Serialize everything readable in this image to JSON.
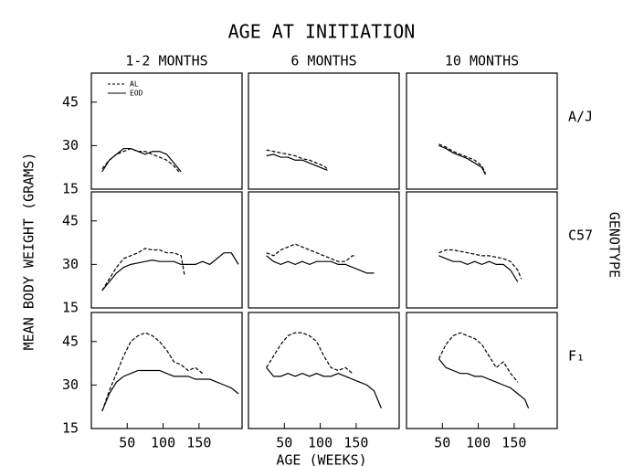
{
  "title": "AGE AT INITIATION",
  "y_label": "MEAN BODY WEIGHT (GRAMS)",
  "x_label": "AGE (WEEKS)",
  "right_label": "GENOTYPE",
  "chart_data": [
    {
      "type": "line",
      "column_title": "1-2 MONTHS",
      "xlim": [
        0,
        210
      ],
      "ylim": [
        15,
        55
      ],
      "yticks": [
        15,
        30,
        45
      ],
      "color": "#000000",
      "series": [
        {
          "name": "AL",
          "dash": true,
          "x": [
            15,
            25,
            35,
            45,
            55,
            65,
            75,
            85,
            95,
            105,
            115,
            122
          ],
          "values": [
            22,
            25,
            27,
            28,
            29,
            28,
            28,
            27,
            26,
            25,
            23,
            21
          ]
        },
        {
          "name": "EOD",
          "dash": false,
          "x": [
            15,
            25,
            35,
            45,
            55,
            65,
            75,
            85,
            95,
            105,
            115,
            125
          ],
          "values": [
            21,
            25,
            27,
            29,
            29,
            28,
            27,
            28,
            28,
            27,
            24,
            21
          ]
        }
      ]
    },
    {
      "type": "line",
      "column_title": "6 MONTHS",
      "xlim": [
        0,
        210
      ],
      "ylim": [
        15,
        55
      ],
      "color": "#000000",
      "series": [
        {
          "dash": true,
          "x": [
            25,
            35,
            45,
            55,
            65,
            75,
            85,
            95,
            105,
            110
          ],
          "values": [
            28.5,
            28,
            27.5,
            27,
            26.5,
            25.5,
            25,
            24,
            23,
            22
          ]
        },
        {
          "dash": false,
          "x": [
            25,
            35,
            45,
            55,
            65,
            75,
            85,
            95,
            105,
            110
          ],
          "values": [
            26.5,
            27,
            26,
            26,
            25,
            25,
            24,
            23,
            22,
            21.5
          ]
        }
      ]
    },
    {
      "type": "line",
      "column_title": "10 MONTHS",
      "row_label": "A/J",
      "xlim": [
        0,
        210
      ],
      "ylim": [
        15,
        55
      ],
      "color": "#000000",
      "series": [
        {
          "dash": true,
          "x": [
            45,
            55,
            65,
            75,
            85,
            95,
            105,
            110
          ],
          "values": [
            30.5,
            29.5,
            28,
            27,
            26,
            25,
            23,
            20.5
          ]
        },
        {
          "dash": false,
          "x": [
            45,
            55,
            65,
            75,
            85,
            95,
            105,
            110
          ],
          "values": [
            30,
            29,
            27.5,
            26.5,
            25.5,
            24,
            22.5,
            20
          ]
        }
      ]
    },
    {
      "type": "line",
      "xlim": [
        0,
        210
      ],
      "ylim": [
        15,
        55
      ],
      "yticks": [
        15,
        30,
        45
      ],
      "color": "#000000",
      "series": [
        {
          "dash": true,
          "x": [
            15,
            25,
            35,
            45,
            55,
            65,
            75,
            85,
            95,
            105,
            115,
            125,
            130
          ],
          "values": [
            21,
            25,
            29,
            32,
            33,
            34,
            35.5,
            35,
            35,
            34,
            34,
            33,
            26
          ]
        },
        {
          "dash": false,
          "x": [
            15,
            25,
            35,
            45,
            55,
            65,
            75,
            85,
            95,
            105,
            115,
            125,
            135,
            145,
            155,
            165,
            175,
            185,
            195,
            205
          ],
          "values": [
            21,
            24,
            27,
            29,
            30,
            30.5,
            31,
            31.5,
            31,
            31,
            31,
            30,
            30,
            30,
            31,
            30,
            32,
            34,
            34,
            30
          ]
        }
      ]
    },
    {
      "type": "line",
      "xlim": [
        0,
        210
      ],
      "ylim": [
        15,
        55
      ],
      "color": "#000000",
      "series": [
        {
          "dash": true,
          "x": [
            25,
            35,
            45,
            55,
            65,
            75,
            85,
            95,
            105,
            115,
            125,
            135,
            145,
            150
          ],
          "values": [
            34,
            33,
            35,
            36,
            37,
            36,
            35,
            34,
            33,
            32,
            31,
            31,
            33,
            33
          ]
        },
        {
          "dash": false,
          "x": [
            25,
            35,
            45,
            55,
            65,
            75,
            85,
            95,
            105,
            115,
            125,
            135,
            145,
            155,
            165,
            175
          ],
          "values": [
            33,
            31,
            30,
            31,
            30,
            31,
            30,
            31,
            31,
            31,
            30,
            30,
            29,
            28,
            27,
            27
          ]
        }
      ]
    },
    {
      "type": "line",
      "row_label": "C57",
      "xlim": [
        0,
        210
      ],
      "ylim": [
        15,
        55
      ],
      "color": "#000000",
      "series": [
        {
          "dash": true,
          "x": [
            45,
            55,
            65,
            75,
            85,
            95,
            105,
            115,
            125,
            135,
            145,
            155,
            160
          ],
          "values": [
            34,
            35,
            35,
            34.5,
            34,
            33.5,
            33,
            33,
            32.5,
            32,
            31,
            28,
            25
          ]
        },
        {
          "dash": false,
          "x": [
            45,
            55,
            65,
            75,
            85,
            95,
            105,
            115,
            125,
            135,
            145,
            155
          ],
          "values": [
            33,
            32,
            31,
            31,
            30,
            31,
            30,
            31,
            30,
            30,
            28,
            24
          ]
        }
      ]
    },
    {
      "type": "line",
      "xlim": [
        0,
        210
      ],
      "ylim": [
        15,
        55
      ],
      "yticks": [
        15,
        30,
        45
      ],
      "xticks": [
        50,
        100,
        150
      ],
      "color": "#000000",
      "series": [
        {
          "dash": true,
          "x": [
            15,
            25,
            35,
            45,
            55,
            65,
            75,
            85,
            95,
            105,
            115,
            125,
            135,
            145,
            155
          ],
          "values": [
            21,
            28,
            34,
            40,
            45,
            47,
            48,
            47,
            45,
            42,
            38,
            37,
            35,
            36,
            34
          ]
        },
        {
          "dash": false,
          "x": [
            15,
            25,
            35,
            45,
            55,
            65,
            75,
            85,
            95,
            105,
            115,
            125,
            135,
            145,
            155,
            165,
            175,
            185,
            195,
            205
          ],
          "values": [
            21,
            27,
            31,
            33,
            34,
            35,
            35,
            35,
            35,
            34,
            33,
            33,
            33,
            32,
            32,
            32,
            31,
            30,
            29,
            27
          ]
        }
      ]
    },
    {
      "type": "line",
      "xlim": [
        0,
        210
      ],
      "ylim": [
        15,
        55
      ],
      "xticks": [
        50,
        100,
        150
      ],
      "color": "#000000",
      "series": [
        {
          "dash": true,
          "x": [
            25,
            35,
            45,
            55,
            65,
            75,
            85,
            95,
            105,
            115,
            125,
            135,
            145
          ],
          "values": [
            36,
            40,
            44,
            47,
            48,
            48,
            47,
            45,
            40,
            36,
            35,
            36,
            34
          ]
        },
        {
          "dash": false,
          "x": [
            25,
            35,
            45,
            55,
            65,
            75,
            85,
            95,
            105,
            115,
            125,
            135,
            145,
            155,
            165,
            175,
            185
          ],
          "values": [
            36,
            33,
            33,
            34,
            33,
            34,
            33,
            34,
            33,
            33,
            34,
            33,
            32,
            31,
            30,
            28,
            22
          ]
        }
      ]
    },
    {
      "type": "line",
      "row_label": "F₁",
      "xlim": [
        0,
        210
      ],
      "ylim": [
        15,
        55
      ],
      "xticks": [
        50,
        100,
        150
      ],
      "color": "#000000",
      "series": [
        {
          "dash": true,
          "x": [
            45,
            55,
            65,
            75,
            85,
            95,
            105,
            115,
            125,
            135,
            145,
            155
          ],
          "values": [
            39,
            44,
            47,
            48,
            47,
            46,
            44,
            40,
            36,
            38,
            34,
            31
          ]
        },
        {
          "dash": false,
          "x": [
            45,
            55,
            65,
            75,
            85,
            95,
            105,
            115,
            125,
            135,
            145,
            155,
            165,
            170
          ],
          "values": [
            39,
            36,
            35,
            34,
            34,
            33,
            33,
            32,
            31,
            30,
            29,
            27,
            25,
            22
          ]
        }
      ]
    }
  ]
}
